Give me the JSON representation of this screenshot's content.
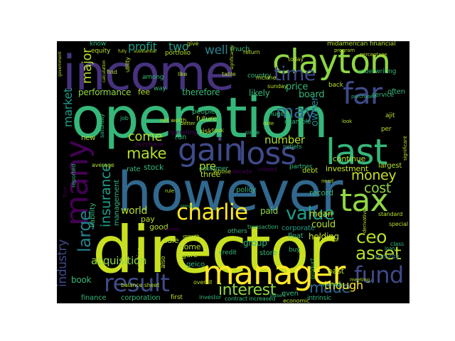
{
  "words": {
    "director": {
      "text": "director",
      "color": "#c8e020"
    },
    "operation": {
      "text": "operation",
      "color": "#35b779"
    },
    "however": {
      "text": "however",
      "color": "#31688e"
    },
    "income": {
      "text": "income",
      "color": "#46327e"
    },
    "clayton": {
      "text": "clayton",
      "color": "#90d743"
    },
    "manager": {
      "text": "manager",
      "color": "#fde725"
    },
    "last": {
      "text": "last",
      "color": "#35b779"
    },
    "loss": {
      "text": "loss",
      "color": "#3e4a89"
    },
    "gain": {
      "text": "gain",
      "color": "#3e4a89"
    },
    "tax": {
      "text": "tax",
      "color": "#90d743"
    },
    "far": {
      "text": "far",
      "color": "#3e4a89"
    },
    "many": {
      "text": "many",
      "color": "#440154"
    },
    "result": {
      "text": "result",
      "color": "#3e4a89"
    },
    "charlie": {
      "text": "charlie",
      "color": "#fde725"
    },
    "fund": {
      "text": "fund",
      "color": "#3e4a89"
    },
    "value": {
      "text": "value",
      "color": "#1f9e89"
    },
    "time": {
      "text": "time",
      "color": "#3e4a89"
    },
    "may": {
      "text": "may",
      "color": "#31688e"
    },
    "money": {
      "text": "money",
      "color": "#c8e020"
    },
    "cost": {
      "text": "cost",
      "color": "#90d743"
    },
    "interest": {
      "text": "interest",
      "color": "#90d743"
    },
    "ceo": {
      "text": "ceo",
      "color": "#b5de2b"
    },
    "asset": {
      "text": "asset",
      "color": "#b5de2b"
    },
    "made": {
      "text": "made",
      "color": "#31688e"
    },
    "make": {
      "text": "make",
      "color": "#b5de2b"
    },
    "well": {
      "text": "well",
      "color": "#26828e"
    },
    "pre": {
      "text": "pre",
      "color": "#b5de2b"
    },
    "number": {
      "text": "number",
      "color": "#b5de2b"
    },
    "insurance": {
      "text": "insurance",
      "color": "#1f9e89"
    },
    "industry": {
      "text": "industry",
      "color": "#3e4a89"
    },
    "large": {
      "text": "large",
      "color": "#26828e"
    },
    "major": {
      "text": "major",
      "color": "#b5de2b"
    },
    "profit": {
      "text": "profit",
      "color": "#1f9e89"
    },
    "two": {
      "text": "two",
      "color": "#1f9e89"
    },
    "market": {
      "text": "market",
      "color": "#1f9e89"
    },
    "come": {
      "text": "come",
      "color": "#b5de2b"
    },
    "performance": {
      "text": "performance",
      "color": "#90d743"
    },
    "world": {
      "text": "world",
      "color": "#b5de2b"
    },
    "acquisition": {
      "text": "acquisition",
      "color": "#90d743"
    },
    "though": {
      "text": "though",
      "color": "#fde725"
    },
    "book": {
      "text": "book",
      "color": "#35b779"
    },
    "owner": {
      "text": "owner",
      "color": "#26828e"
    },
    "board": {
      "text": "board",
      "color": "#35b779"
    },
    "price": {
      "text": "price",
      "color": "#35b779"
    },
    "likely": {
      "text": "likely",
      "color": "#35b779"
    },
    "therefore": {
      "text": "therefore",
      "color": "#35b779"
    },
    "continue": {
      "text": "continue",
      "color": "#b5de2b"
    },
    "largest": {
      "text": "largest",
      "color": "#b5de2b"
    },
    "could": {
      "text": "could",
      "color": "#b5de2b"
    },
    "mean": {
      "text": "mean",
      "color": "#c8e020"
    },
    "holding": {
      "text": "holding",
      "color": "#c8e020"
    },
    "investment": {
      "text": "investment",
      "color": "#c8e020"
    },
    "group": {
      "text": "group",
      "color": "#35b779"
    },
    "paid": {
      "text": "paid",
      "color": "#90d743"
    },
    "record": {
      "text": "record",
      "color": "#35b779"
    },
    "policy": {
      "text": "policy",
      "color": "#35b779"
    },
    "corporate": {
      "text": "corporate",
      "color": "#1f9e89"
    },
    "good": {
      "text": "good",
      "color": "#b5de2b"
    },
    "home": {
      "text": "home",
      "color": "#b5de2b"
    },
    "sale": {
      "text": "sale",
      "color": "#b5de2b"
    },
    "pay": {
      "text": "pay",
      "color": "#b5de2b"
    },
    "stock": {
      "text": "stock",
      "color": "#35b779"
    },
    "rate": {
      "text": "rate",
      "color": "#35b779"
    },
    "new": {
      "text": "new",
      "color": "#b5de2b"
    },
    "run": {
      "text": "run",
      "color": "#35b779"
    },
    "fee": {
      "text": "fee",
      "color": "#b5de2b"
    },
    "store": {
      "text": "store",
      "color": "#35b779"
    },
    "float": {
      "text": "float",
      "color": "#35b779"
    },
    "geico": {
      "text": "geico",
      "color": "#35b779"
    },
    "three": {
      "text": "three",
      "color": "#b5de2b"
    },
    "much": {
      "text": "much",
      "color": "#35b779"
    },
    "midamerican": {
      "text": "midamerican",
      "color": "#b5de2b"
    },
    "financial": {
      "text": "financial",
      "color": "#b5de2b"
    },
    "underwriting": {
      "text": "underwriting",
      "color": "#35b779"
    },
    "service": {
      "text": "service",
      "color": "#35b779"
    },
    "often": {
      "text": "often",
      "color": "#35b779"
    },
    "back": {
      "text": "back",
      "color": "#b5de2b"
    },
    "security": {
      "text": "security",
      "color": "#31688e"
    },
    "finance": {
      "text": "finance",
      "color": "#35b779"
    },
    "corporation": {
      "text": "corporation",
      "color": "#35b779"
    },
    "intrinsic": {
      "text": "intrinsic",
      "color": "#35b779"
    },
    "even": {
      "text": "even",
      "color": "#35b779"
    },
    "past": {
      "text": "past",
      "color": "#b5de2b"
    },
    "first": {
      "text": "first",
      "color": "#b5de2b"
    },
    "figure": {
      "text": "figure",
      "color": "#b5de2b"
    },
    "people": {
      "text": "people",
      "color": "#35b779"
    },
    "future": {
      "text": "future",
      "color": "#b5de2b"
    },
    "huge": {
      "text": "huge",
      "color": "#35b779"
    },
    "example": {
      "text": "example",
      "color": "#35b779"
    },
    "debt": {
      "text": "debt",
      "color": "#b5de2b"
    },
    "partner": {
      "text": "partner",
      "color": "#35b779"
    },
    "customer": {
      "text": "customer",
      "color": "#35b779"
    },
    "purchase": {
      "text": "purchase",
      "color": "#440154"
    },
    "operating": {
      "text": "operating",
      "color": "#440154"
    },
    "risk": {
      "text": "risk",
      "color": "#b5de2b"
    },
    "equity": {
      "text": "equity",
      "color": "#b5de2b"
    },
    "portfolio": {
      "text": "portfolio",
      "color": "#b5de2b"
    },
    "country": {
      "text": "country",
      "color": "#35b779"
    },
    "among": {
      "text": "among",
      "color": "#35b779"
    },
    "way": {
      "text": "way",
      "color": "#35b779"
    },
    "utility": {
      "text": "utility",
      "color": "#b5de2b"
    },
    "know": {
      "text": "know",
      "color": "#35b779"
    },
    "management": {
      "text": "management",
      "color": "#35b779"
    },
    "liability": {
      "text": "liability",
      "color": "#35b779"
    },
    "position": {
      "text": "position",
      "color": "#b5de2b"
    },
    "also": {
      "text": "also",
      "color": "#b5de2b"
    },
    "others": {
      "text": "others",
      "color": "#35b779"
    },
    "credit": {
      "text": "credit",
      "color": "#35b779"
    },
    "buy": {
      "text": "buy",
      "color": "#35b779"
    },
    "product": {
      "text": "product",
      "color": "#35b779"
    },
    "economic": {
      "text": "economic",
      "color": "#b5de2b"
    },
    "overall": {
      "text": "overall",
      "color": "#b5de2b"
    },
    "investor": {
      "text": "investor",
      "color": "#35b779"
    },
    "contract": {
      "text": "contract",
      "color": "#35b779"
    },
    "increased": {
      "text": "increased",
      "color": "#35b779"
    },
    "ajit": {
      "text": "ajit",
      "color": "#b5de2b"
    },
    "per": {
      "text": "per",
      "color": "#b5de2b"
    },
    "special": {
      "text": "special",
      "color": "#b5de2b"
    },
    "standard": {
      "text": "standard",
      "color": "#b5de2b"
    },
    "class": {
      "text": "class",
      "color": "#35b779"
    },
    "netjets": {
      "text": "netjets",
      "color": "#35b779"
    },
    "took": {
      "text": "took",
      "color": "#b5de2b"
    },
    "since": {
      "text": "since",
      "color": "#35b779"
    },
    "decade": {
      "text": "decade",
      "color": "#440154"
    },
    "whose": {
      "text": "whose",
      "color": "#b5de2b"
    },
    "indeed": {
      "text": "indeed",
      "color": "#440154"
    },
    "transaction": {
      "text": "transaction",
      "color": "#35b779"
    },
    "mclane": {
      "text": "mclane",
      "color": "#b5de2b"
    },
    "sunday": {
      "text": "sunday",
      "color": "#b5de2b"
    },
    "job": {
      "text": "job",
      "color": "#35b779"
    },
    "like": {
      "text": "like",
      "color": "#b5de2b"
    },
    "find": {
      "text": "find",
      "color": "#b5de2b"
    },
    "give": {
      "text": "give",
      "color": "#b5de2b"
    },
    "table": {
      "text": "table",
      "color": "#b5de2b"
    },
    "return": {
      "text": "return",
      "color": "#b5de2b"
    },
    "today": {
      "text": "today",
      "color": "#b5de2b"
    },
    "net_worth": {
      "text": "net worth",
      "color": "#b5de2b"
    },
    "balance_sheet": {
      "text": "balance sheet",
      "color": "#b5de2b"
    },
    "saturday": {
      "text": "saturday",
      "color": "#35b779"
    },
    "reported": {
      "text": "reported",
      "color": "#35b779"
    },
    "four": {
      "text": "four",
      "color": "#440154"
    },
    "average": {
      "text": "average",
      "color": "#b5de2b"
    },
    "certain": {
      "text": "certain",
      "color": "#440154"
    },
    "growth": {
      "text": "growth",
      "color": "#b5de2b"
    },
    "loan": {
      "text": "loan",
      "color": "#35b779"
    },
    "meeting": {
      "text": "meeting",
      "color": "#b5de2b"
    },
    "available": {
      "text": "available",
      "color": "#35b779"
    },
    "percentage": {
      "text": "percentage",
      "color": "#b5de2b"
    },
    "purchased": {
      "text": "purchased",
      "color": "#35b779"
    },
    "significant": {
      "text": "significant",
      "color": "#b5de2b"
    },
    "look": {
      "text": "look",
      "color": "#b5de2b"
    },
    "date": {
      "text": "date",
      "color": "#b5de2b"
    },
    "derivative": {
      "text": "derivative",
      "color": "#b5de2b"
    },
    "better": {
      "text": "better",
      "color": "#b5de2b"
    },
    "need": {
      "text": "need",
      "color": "#b5de2b"
    },
    "rule": {
      "text": "rule",
      "color": "#b5de2b"
    },
    "program": {
      "text": "program",
      "color": "#b5de2b"
    },
    "government": {
      "text": "government",
      "color": "#b5de2b"
    },
    "calculation": {
      "text": "calculation",
      "color": "#b5de2b"
    },
    "fully": {
      "text": "fully",
      "color": "#b5de2b"
    },
    "substantial": {
      "text": "substantial",
      "color": "#b5de2b"
    },
    "remain": {
      "text": "remain",
      "color": "#35b779"
    },
    "present": {
      "text": "present",
      "color": "#35b779"
    },
    "significantly": {
      "text": "significantly",
      "color": "#b5de2b"
    }
  }
}
